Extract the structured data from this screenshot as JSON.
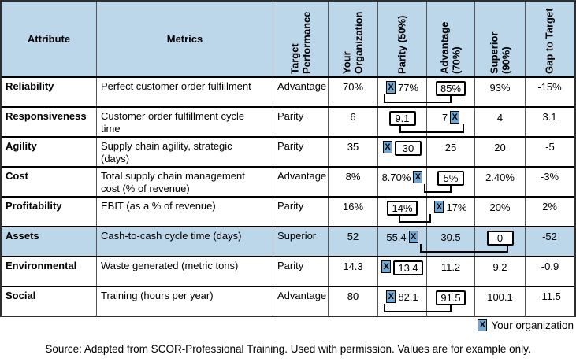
{
  "colors": {
    "header_bg": "#BCD6EA",
    "highlight_row_bg": "#BCD6EA",
    "marker_bg": "#6FA8D4",
    "grid_line": "#555555",
    "border": "#2E2E2E"
  },
  "marker_glyph": "X",
  "table": {
    "headers": [
      {
        "label": "Attribute",
        "rotated": false
      },
      {
        "label": "Metrics",
        "rotated": false
      },
      {
        "label": "Target Performance",
        "rotated": true
      },
      {
        "label": "Your Organization",
        "rotated": true
      },
      {
        "label": "Parity (50%)",
        "rotated": true
      },
      {
        "label": "Advantage (70%)",
        "rotated": true
      },
      {
        "label": "Superior (90%)",
        "rotated": true
      },
      {
        "label": "Gap to Target",
        "rotated": true
      }
    ],
    "rows": [
      {
        "attribute": "Reliability",
        "metrics": "Perfect customer order fulfillment",
        "target": "Advantage",
        "your_org": "70%",
        "parity": {
          "marker": "before",
          "value": "77%",
          "boxed": false
        },
        "advantage": {
          "marker": "none",
          "value": "85%",
          "boxed": true
        },
        "superior": {
          "marker": "none",
          "value": "93%",
          "boxed": false
        },
        "gap": "-15%",
        "highlight": false
      },
      {
        "attribute": "Responsiveness",
        "metrics": "Customer order fulfillment cycle time",
        "target": "Parity",
        "your_org": "6",
        "parity": {
          "marker": "none",
          "value": "9.1",
          "boxed": true
        },
        "advantage": {
          "marker": "after",
          "value": "7",
          "boxed": false
        },
        "superior": {
          "marker": "none",
          "value": "4",
          "boxed": false
        },
        "gap": "3.1",
        "highlight": false
      },
      {
        "attribute": "Agility",
        "metrics": "Supply chain agility, strategic (days)",
        "target": "Parity",
        "your_org": "35",
        "parity": {
          "marker": "before",
          "value": "30",
          "boxed": true
        },
        "advantage": {
          "marker": "none",
          "value": "25",
          "boxed": false
        },
        "superior": {
          "marker": "none",
          "value": "20",
          "boxed": false
        },
        "gap": "-5",
        "highlight": false
      },
      {
        "attribute": "Cost",
        "metrics": "Total supply chain management cost (% of revenue)",
        "target": "Advantage",
        "your_org": "8%",
        "parity": {
          "marker": "after",
          "value": "8.70%",
          "boxed": false
        },
        "advantage": {
          "marker": "none",
          "value": "5%",
          "boxed": true
        },
        "superior": {
          "marker": "none",
          "value": "2.40%",
          "boxed": false
        },
        "gap": "-3%",
        "highlight": false
      },
      {
        "attribute": "Profitability",
        "metrics": "EBIT (as a % of revenue)",
        "target": "Parity",
        "your_org": "16%",
        "parity": {
          "marker": "none",
          "value": "14%",
          "boxed": true
        },
        "advantage": {
          "marker": "before",
          "value": "17%",
          "boxed": false
        },
        "superior": {
          "marker": "none",
          "value": "20%",
          "boxed": false
        },
        "gap": "2%",
        "highlight": false
      },
      {
        "attribute": "Assets",
        "metrics": "Cash-to-cash cycle time (days)",
        "target": "Superior",
        "your_org": "52",
        "parity": {
          "marker": "after",
          "value": "55.4",
          "boxed": false
        },
        "advantage": {
          "marker": "none",
          "value": "30.5",
          "boxed": false
        },
        "superior": {
          "marker": "none",
          "value": "0",
          "boxed": true
        },
        "gap": "-52",
        "highlight": true
      },
      {
        "attribute": "Environmental",
        "metrics": "Waste generated (metric tons)",
        "target": "Parity",
        "your_org": "14.3",
        "parity": {
          "marker": "before",
          "value": "13.4",
          "boxed": true
        },
        "advantage": {
          "marker": "none",
          "value": "11.2",
          "boxed": false
        },
        "superior": {
          "marker": "none",
          "value": "9.2",
          "boxed": false
        },
        "gap": "-0.9",
        "highlight": false
      },
      {
        "attribute": "Social",
        "metrics": "Training (hours per year)",
        "target": "Advantage",
        "your_org": "80",
        "parity": {
          "marker": "before",
          "value": "82.1",
          "boxed": false
        },
        "advantage": {
          "marker": "none",
          "value": "91.5",
          "boxed": true
        },
        "superior": {
          "marker": "none",
          "value": "100.1",
          "boxed": false
        },
        "gap": "-11.5",
        "highlight": false
      }
    ]
  },
  "legend": {
    "label": "Your organization"
  },
  "source": "Source: Adapted from SCOR-Professional Training. Used with permission. Values are for example only."
}
